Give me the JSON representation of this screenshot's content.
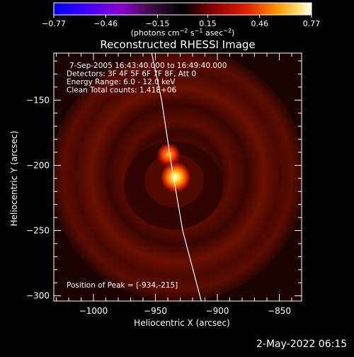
{
  "colorbar": {
    "ticks": [
      "-0.77",
      "-0.46",
      "-0.15",
      "0.15",
      "0.46",
      "0.77"
    ],
    "min": -0.77,
    "max": 0.77,
    "units_text": "(photons cm-2 s-1 asec-2)"
  },
  "chart_data": {
    "type": "heatmap",
    "title": "Reconstructed RHESSI Image",
    "xlabel": "Heliocentric X (arcsec)",
    "ylabel": "Heliocentric Y (arcsec)",
    "xlim": [
      -1032,
      -832
    ],
    "ylim": [
      -304,
      -114
    ],
    "x_ticks": [
      -1000,
      -950,
      -900,
      -850
    ],
    "x_tick_labels": [
      "−1000",
      "−950",
      "−900",
      "−850"
    ],
    "y_ticks": [
      -150,
      -200,
      -250,
      -300
    ],
    "y_tick_labels": [
      "−150",
      "−200",
      "−250",
      "−300"
    ],
    "annotations": [
      "7-Sep-2005 16:43:40.000 to 16:49:40.000",
      "Detectors: 3F 4F 5F 6F 7F 8F, Att 0",
      "Energy Range: 6.0 - 12.0 keV",
      "Clean    Total counts: 1.41E+06"
    ],
    "peak_label": "Position of Peak = [-934,-215]",
    "peak": {
      "x": -934,
      "y": -215
    },
    "colormap": "hot",
    "limb_points": [
      [
        -953,
        -114
      ],
      [
        -945,
        -150
      ],
      [
        -937,
        -200
      ],
      [
        -928,
        -250
      ],
      [
        -913,
        -304
      ]
    ]
  },
  "timestamp": "2-May-2022 06:15"
}
